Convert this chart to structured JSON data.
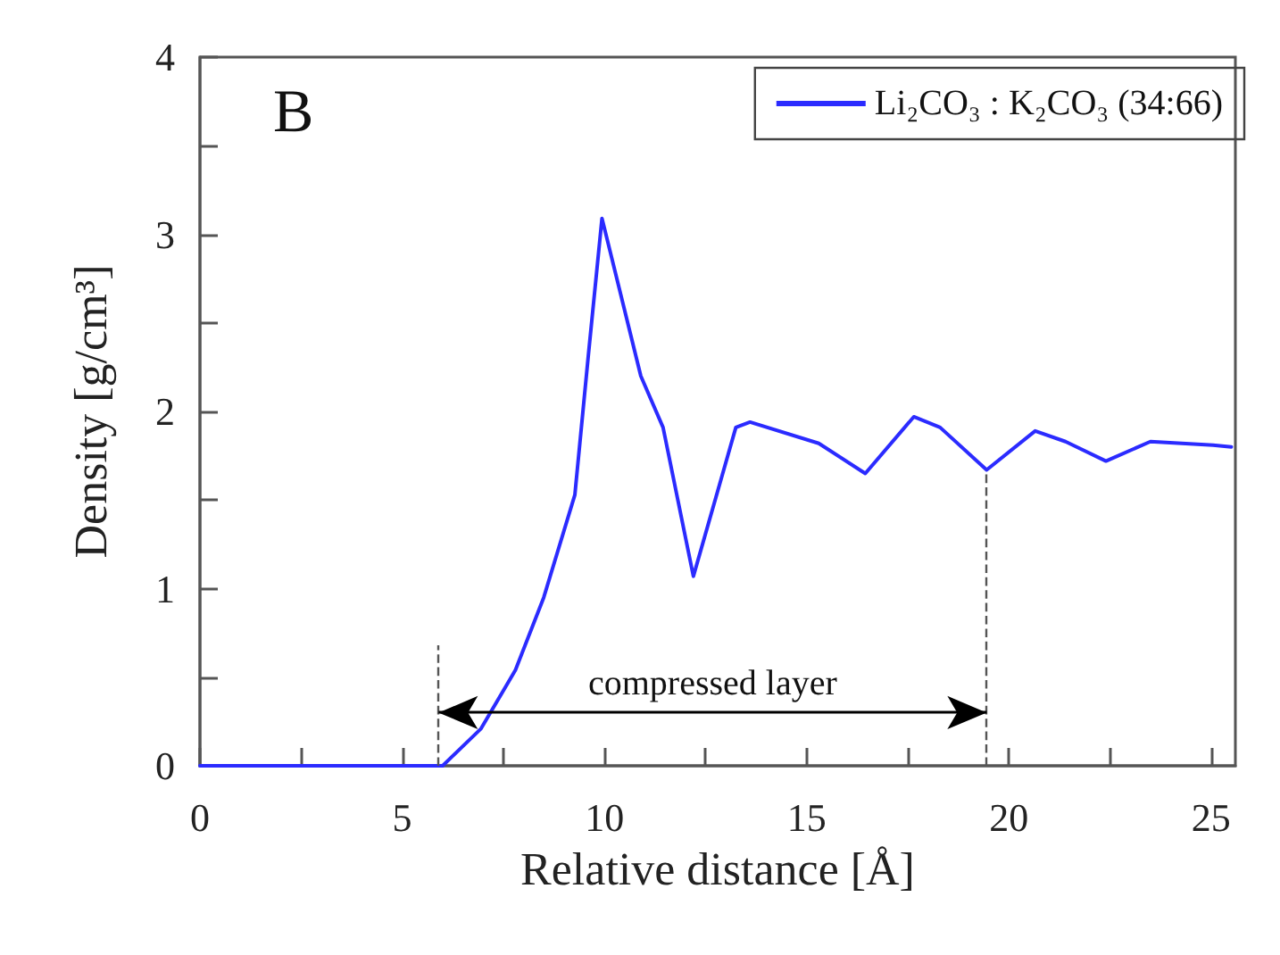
{
  "chart_data": {
    "type": "line",
    "annotations": [
      "B",
      "compressed layer"
    ],
    "xlabel": "Relative distance [Å]",
    "ylabel": "Density [g/cm³]",
    "x": [
      0,
      2,
      4,
      5.1,
      5.75,
      6.0,
      6.95,
      7.8,
      8.5,
      9.27,
      9.6,
      9.94,
      10.9,
      11.45,
      12.2,
      13.25,
      13.6,
      15.3,
      16.45,
      17.65,
      18.3,
      19.45,
      20.65,
      21.4,
      22.4,
      23.5,
      25.05,
      25.5
    ],
    "series": [
      {
        "name": "Li₂CO₃ : K₂CO₃ (34:66)",
        "color": "#2b2bff",
        "values": [
          0,
          0,
          0,
          0,
          0,
          0,
          0.21,
          0.54,
          0.95,
          1.53,
          2.31,
          3.09,
          2.2,
          1.91,
          1.07,
          1.91,
          1.94,
          1.82,
          1.65,
          1.97,
          1.91,
          1.67,
          1.89,
          1.83,
          1.72,
          1.83,
          1.81,
          1.8
        ]
      }
    ],
    "xlim": [
      0,
      25.6
    ],
    "ylim": [
      0,
      4
    ],
    "xticks": [
      0,
      {
        "value": 2.5,
        "label": null
      },
      5,
      {
        "value": 7.5,
        "label": null
      },
      10,
      {
        "value": 12.5,
        "label": null
      },
      15,
      {
        "value": 17.5,
        "label": null
      },
      20,
      {
        "value": 22.5,
        "label": null
      },
      25
    ],
    "yticks": [
      0,
      {
        "value": 0.5,
        "label": null
      },
      1,
      {
        "value": 1.5,
        "label": null
      },
      2,
      {
        "value": 2.5,
        "label": null
      },
      3,
      {
        "value": 3.5,
        "label": null
      },
      4
    ],
    "ref_lines": [
      {
        "axis": "x",
        "value": 5.9,
        "color": "#555555",
        "line_style": "dashed"
      },
      {
        "axis": "x",
        "value": 19.45,
        "color": "#555555",
        "line_style": "dashed"
      }
    ],
    "grid": false,
    "legend": "top right",
    "marker": "none",
    "line_style": "solid"
  }
}
